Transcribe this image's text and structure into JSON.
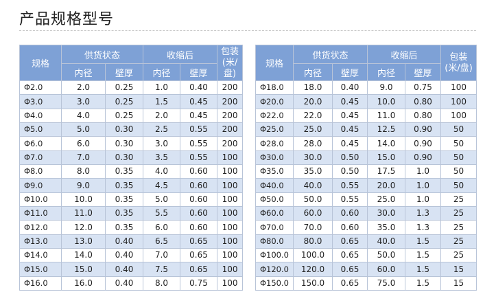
{
  "title": "产品规格型号",
  "headers": {
    "spec": "规格",
    "supply": "供货状态",
    "shrunk": "收缩后",
    "pack": "包装\n(米/盘)",
    "inner": "内径",
    "wall": "壁厚"
  },
  "left_rows": [
    [
      "Φ2.0",
      "2.0",
      "0.25",
      "1.0",
      "0.40",
      "200"
    ],
    [
      "Φ3.0",
      "3.0",
      "0.25",
      "1.5",
      "0.45",
      "200"
    ],
    [
      "Φ4.0",
      "4.0",
      "0.25",
      "2.0",
      "0.45",
      "200"
    ],
    [
      "Φ5.0",
      "5.0",
      "0.30",
      "2.5",
      "0.55",
      "200"
    ],
    [
      "Φ6.0",
      "6.0",
      "0.30",
      "3.0",
      "0.55",
      "200"
    ],
    [
      "Φ7.0",
      "7.0",
      "0.30",
      "3.5",
      "0.55",
      "100"
    ],
    [
      "Φ8.0",
      "8.0",
      "0.35",
      "4.0",
      "0.60",
      "100"
    ],
    [
      "Φ9.0",
      "9.0",
      "0.35",
      "4.5",
      "0.60",
      "100"
    ],
    [
      "Φ10.0",
      "10.0",
      "0.35",
      "5.0",
      "0.60",
      "100"
    ],
    [
      "Φ11.0",
      "11.0",
      "0.35",
      "5.5",
      "0.60",
      "100"
    ],
    [
      "Φ12.0",
      "12.0",
      "0.35",
      "6.0",
      "0.60",
      "100"
    ],
    [
      "Φ13.0",
      "13.0",
      "0.40",
      "6.5",
      "0.65",
      "100"
    ],
    [
      "Φ14.0",
      "14.0",
      "0.40",
      "7.0",
      "0.65",
      "100"
    ],
    [
      "Φ15.0",
      "15.0",
      "0.40",
      "7.5",
      "0.65",
      "100"
    ],
    [
      "Φ16.0",
      "16.0",
      "0.40",
      "8.0",
      "0.75",
      "100"
    ]
  ],
  "right_rows": [
    [
      "Φ18.0",
      "18.0",
      "0.40",
      "9.0",
      "0.75",
      "100"
    ],
    [
      "Φ20.0",
      "20.0",
      "0.45",
      "10.0",
      "0.80",
      "100"
    ],
    [
      "Φ22.0",
      "22.0",
      "0.45",
      "11.0",
      "0.80",
      "100"
    ],
    [
      "Φ25.0",
      "25.0",
      "0.45",
      "12.5",
      "0.90",
      "50"
    ],
    [
      "Φ28.0",
      "28.0",
      "0.45",
      "14.0",
      "0.90",
      "50"
    ],
    [
      "Φ30.0",
      "30.0",
      "0.50",
      "15.0",
      "0.90",
      "50"
    ],
    [
      "Φ35.0",
      "35.0",
      "0.50",
      "17.5",
      "1.0",
      "50"
    ],
    [
      "Φ40.0",
      "40.0",
      "0.55",
      "20.0",
      "1.0",
      "50"
    ],
    [
      "Φ50.0",
      "50.0",
      "0.55",
      "25.0",
      "1.0",
      "25"
    ],
    [
      "Φ60.0",
      "60.0",
      "0.60",
      "30.0",
      "1.3",
      "25"
    ],
    [
      "Φ70.0",
      "70.0",
      "0.60",
      "35.0",
      "1.3",
      "25"
    ],
    [
      "Φ80.0",
      "80.0",
      "0.65",
      "40.0",
      "1.5",
      "25"
    ],
    [
      "Φ100.0",
      "100.0",
      "0.65",
      "50.0",
      "1.5",
      "25"
    ],
    [
      "Φ120.0",
      "120.0",
      "0.65",
      "60.0",
      "1.5",
      "15"
    ],
    [
      "Φ150.0",
      "150.0",
      "0.65",
      "75.0",
      "1.5",
      "15"
    ]
  ],
  "colors": {
    "header_bg": "#7ea1d6",
    "header_text": "#ffffff",
    "alt_row_bg": "#d8e3f3",
    "border": "#b8c4d8"
  }
}
